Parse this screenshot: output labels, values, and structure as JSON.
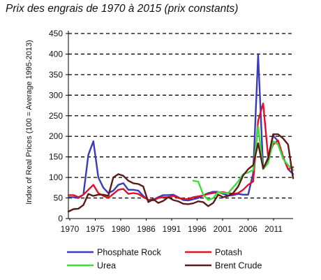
{
  "chart_data": {
    "type": "line",
    "title": "Prix des engrais de 1970 à 2015 (prix constants)",
    "xlabel": "",
    "ylabel": "Index of Real Prices (100 = Average 1995-2013)",
    "xlim": [
      1970,
      2015
    ],
    "ylim": [
      0,
      450
    ],
    "y_ticks": [
      0,
      50,
      100,
      150,
      200,
      250,
      300,
      350,
      400,
      450
    ],
    "x_tick_labels": [
      "1970",
      "1975",
      "1980",
      "1986",
      "1991",
      "1996",
      "2001",
      "2006",
      "2011"
    ],
    "grid": "horizontal dashed",
    "legend_position": "bottom",
    "series": [
      {
        "name": "Phosphate Rock",
        "color": "#3b3bb8",
        "points": [
          [
            1970,
            52
          ],
          [
            1971,
            52
          ],
          [
            1972,
            50
          ],
          [
            1973,
            58
          ],
          [
            1974,
            155
          ],
          [
            1975,
            188
          ],
          [
            1976,
            100
          ],
          [
            1977,
            75
          ],
          [
            1978,
            62
          ],
          [
            1979,
            68
          ],
          [
            1980,
            82
          ],
          [
            1981,
            86
          ],
          [
            1982,
            70
          ],
          [
            1983,
            70
          ],
          [
            1984,
            68
          ],
          [
            1985,
            55
          ],
          [
            1986,
            45
          ],
          [
            1987,
            46
          ],
          [
            1988,
            52
          ],
          [
            1989,
            57
          ],
          [
            1990,
            57
          ],
          [
            1991,
            58
          ],
          [
            1992,
            52
          ],
          [
            1993,
            45
          ],
          [
            1994,
            44
          ],
          [
            1995,
            47
          ],
          [
            1996,
            50
          ],
          [
            1997,
            56
          ],
          [
            1998,
            62
          ],
          [
            1999,
            65
          ],
          [
            2000,
            65
          ],
          [
            2001,
            60
          ],
          [
            2002,
            56
          ],
          [
            2003,
            57
          ],
          [
            2004,
            60
          ],
          [
            2005,
            58
          ],
          [
            2006,
            58
          ],
          [
            2007,
            110
          ],
          [
            2008,
            398
          ],
          [
            2009,
            120
          ],
          [
            2010,
            148
          ],
          [
            2011,
            202
          ],
          [
            2012,
            188
          ],
          [
            2013,
            150
          ],
          [
            2014,
            120
          ],
          [
            2015,
            108
          ]
        ]
      },
      {
        "name": "Potash",
        "color": "#e0102a",
        "points": [
          [
            1970,
            57
          ],
          [
            1971,
            57
          ],
          [
            1972,
            52
          ],
          [
            1973,
            58
          ],
          [
            1974,
            70
          ],
          [
            1975,
            82
          ],
          [
            1976,
            62
          ],
          [
            1977,
            55
          ],
          [
            1978,
            50
          ],
          [
            1979,
            60
          ],
          [
            1980,
            70
          ],
          [
            1981,
            72
          ],
          [
            1982,
            60
          ],
          [
            1983,
            62
          ],
          [
            1984,
            60
          ],
          [
            1985,
            52
          ],
          [
            1986,
            46
          ],
          [
            1987,
            44
          ],
          [
            1988,
            50
          ],
          [
            1989,
            52
          ],
          [
            1990,
            52
          ],
          [
            1991,
            55
          ],
          [
            1992,
            50
          ],
          [
            1993,
            48
          ],
          [
            1994,
            47
          ],
          [
            1995,
            52
          ],
          [
            1996,
            54
          ],
          [
            1997,
            56
          ],
          [
            1998,
            60
          ],
          [
            1999,
            62
          ],
          [
            2000,
            64
          ],
          [
            2001,
            64
          ],
          [
            2002,
            62
          ],
          [
            2003,
            60
          ],
          [
            2004,
            62
          ],
          [
            2005,
            70
          ],
          [
            2006,
            82
          ],
          [
            2007,
            90
          ],
          [
            2008,
            238
          ],
          [
            2009,
            280
          ],
          [
            2010,
            150
          ],
          [
            2011,
            180
          ],
          [
            2012,
            190
          ],
          [
            2013,
            150
          ],
          [
            2014,
            120
          ],
          [
            2015,
            125
          ]
        ]
      },
      {
        "name": "Urea",
        "color": "#3ddc3d",
        "points": [
          [
            1995,
            92
          ],
          [
            1996,
            90
          ],
          [
            1997,
            58
          ],
          [
            1998,
            45
          ],
          [
            1999,
            50
          ],
          [
            2000,
            65
          ],
          [
            2001,
            62
          ],
          [
            2002,
            62
          ],
          [
            2003,
            76
          ],
          [
            2004,
            90
          ],
          [
            2005,
            108
          ],
          [
            2006,
            112
          ],
          [
            2007,
            118
          ],
          [
            2008,
            225
          ],
          [
            2009,
            120
          ],
          [
            2010,
            135
          ],
          [
            2011,
            188
          ],
          [
            2012,
            180
          ],
          [
            2013,
            145
          ],
          [
            2014,
            130
          ],
          [
            2015,
            118
          ]
        ]
      },
      {
        "name": "Brent Crude",
        "color": "#5a1c16",
        "points": [
          [
            1970,
            17
          ],
          [
            1971,
            23
          ],
          [
            1972,
            24
          ],
          [
            1973,
            33
          ],
          [
            1974,
            60
          ],
          [
            1975,
            55
          ],
          [
            1976,
            58
          ],
          [
            1977,
            58
          ],
          [
            1978,
            55
          ],
          [
            1979,
            100
          ],
          [
            1980,
            108
          ],
          [
            1981,
            104
          ],
          [
            1982,
            92
          ],
          [
            1983,
            86
          ],
          [
            1984,
            84
          ],
          [
            1985,
            78
          ],
          [
            1986,
            40
          ],
          [
            1987,
            47
          ],
          [
            1988,
            38
          ],
          [
            1989,
            43
          ],
          [
            1990,
            52
          ],
          [
            1991,
            45
          ],
          [
            1992,
            42
          ],
          [
            1993,
            36
          ],
          [
            1994,
            35
          ],
          [
            1995,
            37
          ],
          [
            1996,
            42
          ],
          [
            1997,
            40
          ],
          [
            1998,
            30
          ],
          [
            1999,
            38
          ],
          [
            2000,
            58
          ],
          [
            2001,
            52
          ],
          [
            2002,
            55
          ],
          [
            2003,
            62
          ],
          [
            2004,
            78
          ],
          [
            2005,
            105
          ],
          [
            2006,
            120
          ],
          [
            2007,
            130
          ],
          [
            2008,
            183
          ],
          [
            2009,
            122
          ],
          [
            2010,
            145
          ],
          [
            2011,
            205
          ],
          [
            2012,
            205
          ],
          [
            2013,
            195
          ],
          [
            2014,
            180
          ],
          [
            2015,
            98
          ]
        ]
      }
    ]
  }
}
